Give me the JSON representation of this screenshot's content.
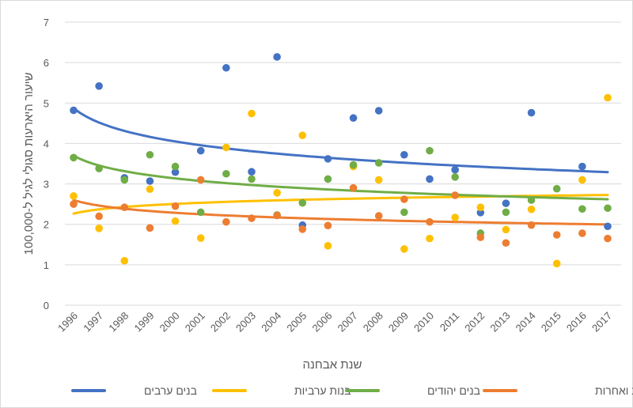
{
  "chart_data": {
    "type": "scatter",
    "xlabel": "שנת אבחנה",
    "ylabel": "שיעור היארעות סגולי לגיל ל-100,000",
    "ylim": [
      0,
      7
    ],
    "yticks": [
      "0",
      "1",
      "2",
      "3",
      "4",
      "5",
      "6",
      "7"
    ],
    "x": [
      "1996",
      "1997",
      "1998",
      "1999",
      "2000",
      "2001",
      "2002",
      "2003",
      "2004",
      "2005",
      "2006",
      "2007",
      "2008",
      "2009",
      "2010",
      "2011",
      "2012",
      "2013",
      "2014",
      "2015",
      "2016",
      "2017"
    ],
    "grid": "horizontal",
    "legend": "bottom",
    "trendlines": "logarithmic",
    "series": [
      {
        "name": "בנים ערבים",
        "color": "#4472c4",
        "values": [
          4.82,
          5.42,
          3.15,
          3.07,
          3.29,
          3.82,
          5.87,
          3.3,
          6.14,
          1.98,
          3.62,
          4.63,
          4.81,
          3.72,
          3.12,
          3.35,
          2.29,
          2.52,
          4.76,
          null,
          3.43,
          1.95
        ]
      },
      {
        "name": "בנות ערביות",
        "color": "#ffc000",
        "values": [
          2.7,
          1.9,
          1.1,
          2.87,
          2.08,
          1.66,
          3.9,
          4.74,
          2.78,
          4.2,
          1.47,
          3.43,
          3.1,
          1.39,
          1.65,
          2.17,
          2.42,
          1.87,
          2.37,
          1.03,
          3.1,
          5.13
        ]
      },
      {
        "name": "בנים יהודים",
        "color": "#70ad47",
        "values": [
          3.65,
          3.38,
          3.1,
          3.72,
          3.43,
          2.3,
          3.25,
          3.12,
          2.23,
          2.53,
          3.12,
          3.47,
          3.52,
          2.3,
          3.82,
          3.17,
          1.78,
          2.3,
          2.6,
          2.88,
          2.38,
          2.4
        ]
      },
      {
        "name": "בנות יהודיות ואחרות",
        "color": "#ed7d31",
        "values": [
          2.5,
          2.2,
          2.42,
          1.91,
          2.45,
          3.1,
          2.06,
          2.15,
          2.22,
          1.88,
          1.97,
          2.9,
          2.21,
          2.62,
          2.06,
          2.72,
          1.68,
          1.54,
          1.98,
          1.74,
          1.78,
          1.65
        ]
      }
    ]
  }
}
